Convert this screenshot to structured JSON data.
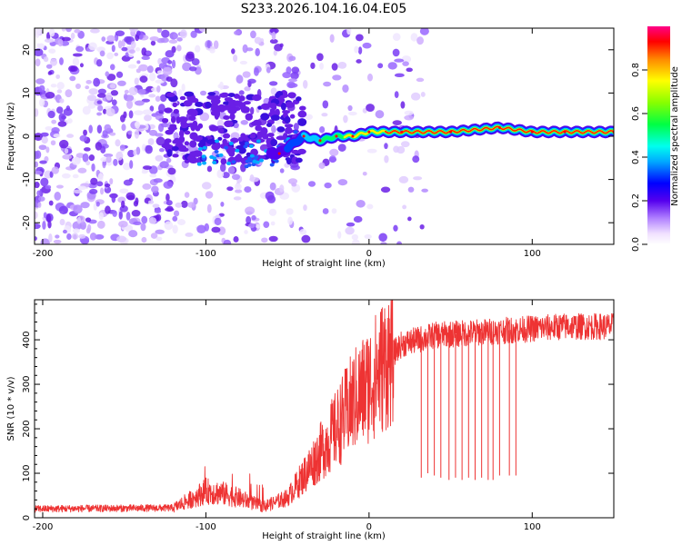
{
  "chart_data": [
    {
      "type": "heatmap",
      "title": "S233.2026.104.16.04.E05",
      "xlabel": "Height of straight line (km)",
      "ylabel": "Frequency (Hz)",
      "xlim": [
        -205,
        150
      ],
      "ylim": [
        -25,
        25
      ],
      "xticks": [
        -200,
        -100,
        0,
        100
      ],
      "yticks": [
        -20,
        -10,
        0,
        10,
        20
      ],
      "colorbar": {
        "label": "Normalized spectral amplitude",
        "range": [
          0,
          1
        ],
        "ticks": [
          "0.0",
          "0.2",
          "0.4",
          "0.6",
          "0.8"
        ]
      },
      "ridge": [
        {
          "x": -55,
          "y": -4
        },
        {
          "x": -40,
          "y": 0
        },
        {
          "x": -30,
          "y": -1
        },
        {
          "x": -20,
          "y": 0
        },
        {
          "x": -10,
          "y": 0
        },
        {
          "x": 0,
          "y": 1
        },
        {
          "x": 20,
          "y": 1
        },
        {
          "x": 50,
          "y": 1
        },
        {
          "x": 80,
          "y": 2
        },
        {
          "x": 100,
          "y": 1
        },
        {
          "x": 120,
          "y": 1
        },
        {
          "x": 150,
          "y": 1
        }
      ]
    },
    {
      "type": "line",
      "xlabel": "Height of straight line (km)",
      "ylabel": "SNR (10 * v/v)",
      "xlim": [
        -205,
        150
      ],
      "ylim": [
        0,
        490
      ],
      "xticks": [
        -200,
        -100,
        0,
        100
      ],
      "yticks": [
        0,
        100,
        200,
        300,
        400
      ],
      "color": "#ee3333",
      "trend": [
        {
          "x": -205,
          "y": 20
        },
        {
          "x": -120,
          "y": 22
        },
        {
          "x": -110,
          "y": 40
        },
        {
          "x": -100,
          "y": 60
        },
        {
          "x": -90,
          "y": 55
        },
        {
          "x": -80,
          "y": 45
        },
        {
          "x": -65,
          "y": 25
        },
        {
          "x": -50,
          "y": 45
        },
        {
          "x": -35,
          "y": 120
        },
        {
          "x": -20,
          "y": 200
        },
        {
          "x": -10,
          "y": 260
        },
        {
          "x": 0,
          "y": 300
        },
        {
          "x": 10,
          "y": 350
        },
        {
          "x": 20,
          "y": 390
        },
        {
          "x": 40,
          "y": 410
        },
        {
          "x": 80,
          "y": 420
        },
        {
          "x": 120,
          "y": 430
        },
        {
          "x": 150,
          "y": 430
        }
      ],
      "dropouts": [
        {
          "x": 32,
          "y": 90
        },
        {
          "x": 36,
          "y": 100
        },
        {
          "x": 40,
          "y": 95
        },
        {
          "x": 44,
          "y": 90
        },
        {
          "x": 49,
          "y": 85
        },
        {
          "x": 53,
          "y": 90
        },
        {
          "x": 57,
          "y": 85
        },
        {
          "x": 61,
          "y": 90
        },
        {
          "x": 65,
          "y": 85
        },
        {
          "x": 69,
          "y": 90
        },
        {
          "x": 73,
          "y": 85
        },
        {
          "x": 76,
          "y": 85
        },
        {
          "x": 80,
          "y": 95
        },
        {
          "x": 86,
          "y": 95
        },
        {
          "x": 90,
          "y": 95
        }
      ]
    }
  ]
}
